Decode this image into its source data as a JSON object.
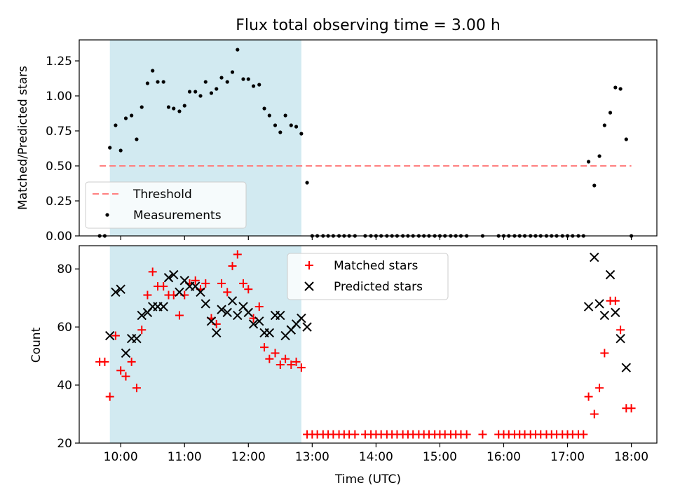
{
  "figure": {
    "title": "Flux total observing time = 3.00 h"
  },
  "chart_data": [
    {
      "type": "scatter",
      "title": "Flux total observing time = 3.00 h",
      "xlabel": "",
      "ylabel": "Matched/Predicted stars",
      "xlim_hours": [
        9.35,
        18.4
      ],
      "ylim": [
        0,
        1.4
      ],
      "yticks": [
        "0.00",
        "0.25",
        "0.50",
        "0.75",
        "1.00",
        "1.25"
      ],
      "xticks": [
        "10:00",
        "11:00",
        "12:00",
        "13:00",
        "14:00",
        "15:00",
        "16:00",
        "17:00",
        "18:00"
      ],
      "shaded_span_hours": [
        9.83,
        12.83
      ],
      "shade_color": "#add8e6",
      "legend": {
        "position": "lower-left",
        "entries": [
          "Threshold",
          "Measurements"
        ]
      },
      "threshold": {
        "name": "Threshold",
        "value": 0.5,
        "x_range_hours": [
          9.67,
          18.0
        ],
        "color": "#ff7f7f"
      },
      "series": [
        {
          "name": "Measurements",
          "color": "#000000",
          "x_hours": [
            9.67,
            9.75,
            9.83,
            9.92,
            10.0,
            10.08,
            10.17,
            10.25,
            10.33,
            10.42,
            10.5,
            10.58,
            10.67,
            10.75,
            10.83,
            10.92,
            11.0,
            11.08,
            11.17,
            11.25,
            11.33,
            11.42,
            11.5,
            11.58,
            11.67,
            11.75,
            11.83,
            11.92,
            12.0,
            12.08,
            12.17,
            12.25,
            12.33,
            12.42,
            12.5,
            12.58,
            12.67,
            12.75,
            12.83,
            12.92,
            13.0,
            13.08,
            13.17,
            13.25,
            13.33,
            13.42,
            13.5,
            13.58,
            13.67,
            13.83,
            13.92,
            14.0,
            14.08,
            14.17,
            14.25,
            14.33,
            14.42,
            14.5,
            14.58,
            14.67,
            14.75,
            14.83,
            14.92,
            15.0,
            15.08,
            15.17,
            15.25,
            15.33,
            15.42,
            15.67,
            15.92,
            16.0,
            16.08,
            16.17,
            16.25,
            16.33,
            16.42,
            16.5,
            16.58,
            16.67,
            16.75,
            16.83,
            16.92,
            17.0,
            17.08,
            17.17,
            17.25,
            17.33,
            17.42,
            17.5,
            17.58,
            17.67,
            17.75,
            17.83,
            17.92,
            18.0
          ],
          "y": [
            0.0,
            0.0,
            0.63,
            0.79,
            0.61,
            0.84,
            0.86,
            0.69,
            0.92,
            1.09,
            1.18,
            1.1,
            1.1,
            0.92,
            0.91,
            0.89,
            0.93,
            1.03,
            1.03,
            1.0,
            1.1,
            1.02,
            1.05,
            1.13,
            1.1,
            1.17,
            1.33,
            1.12,
            1.12,
            1.07,
            1.08,
            0.91,
            0.86,
            0.79,
            0.74,
            0.86,
            0.79,
            0.78,
            0.73,
            0.38,
            0.0,
            0.0,
            0.0,
            0.0,
            0.0,
            0.0,
            0.0,
            0.0,
            0.0,
            0.0,
            0.0,
            0.0,
            0.0,
            0.0,
            0.0,
            0.0,
            0.0,
            0.0,
            0.0,
            0.0,
            0.0,
            0.0,
            0.0,
            0.0,
            0.0,
            0.0,
            0.0,
            0.0,
            0.0,
            0.0,
            0.0,
            0.0,
            0.0,
            0.0,
            0.0,
            0.0,
            0.0,
            0.0,
            0.0,
            0.0,
            0.0,
            0.0,
            0.0,
            0.0,
            0.0,
            0.0,
            0.0,
            0.53,
            0.36,
            0.57,
            0.79,
            0.88,
            1.06,
            1.05,
            0.69,
            0.0
          ]
        }
      ]
    },
    {
      "type": "scatter",
      "title": "",
      "xlabel": "Time (UTC)",
      "ylabel": "Count",
      "xlim_hours": [
        9.35,
        18.4
      ],
      "ylim": [
        20,
        88
      ],
      "yticks": [
        "20",
        "40",
        "60",
        "80"
      ],
      "xticks": [
        "10:00",
        "11:00",
        "12:00",
        "13:00",
        "14:00",
        "15:00",
        "16:00",
        "17:00",
        "18:00"
      ],
      "shaded_span_hours": [
        9.83,
        12.83
      ],
      "shade_color": "#add8e6",
      "legend": {
        "position": "upper-center",
        "entries": [
          "Matched stars",
          "Predicted stars"
        ]
      },
      "series": [
        {
          "name": "Matched stars",
          "marker": "plus",
          "color": "#ff0000",
          "x_hours": [
            9.67,
            9.75,
            9.83,
            9.92,
            10.0,
            10.08,
            10.17,
            10.25,
            10.33,
            10.42,
            10.5,
            10.58,
            10.67,
            10.75,
            10.83,
            10.92,
            11.0,
            11.08,
            11.17,
            11.25,
            11.33,
            11.42,
            11.5,
            11.58,
            11.67,
            11.75,
            11.83,
            11.92,
            12.0,
            12.08,
            12.17,
            12.25,
            12.33,
            12.42,
            12.5,
            12.58,
            12.67,
            12.75,
            12.83,
            12.92,
            13.0,
            13.08,
            13.17,
            13.25,
            13.33,
            13.42,
            13.5,
            13.58,
            13.67,
            13.83,
            13.92,
            14.0,
            14.08,
            14.17,
            14.25,
            14.33,
            14.42,
            14.5,
            14.58,
            14.67,
            14.75,
            14.83,
            14.92,
            15.0,
            15.08,
            15.17,
            15.25,
            15.33,
            15.42,
            15.67,
            15.92,
            16.0,
            16.08,
            16.17,
            16.25,
            16.33,
            16.42,
            16.5,
            16.58,
            16.67,
            16.75,
            16.83,
            16.92,
            17.0,
            17.08,
            17.17,
            17.25,
            17.33,
            17.42,
            17.5,
            17.58,
            17.67,
            17.75,
            17.83,
            17.92,
            18.0
          ],
          "y": [
            48,
            48,
            36,
            57,
            45,
            43,
            48,
            39,
            59,
            71,
            79,
            74,
            74,
            71,
            71,
            64,
            71,
            75,
            76,
            73,
            75,
            63,
            61,
            75,
            72,
            81,
            85,
            75,
            73,
            63,
            67,
            53,
            49,
            51,
            47,
            49,
            47,
            48,
            46,
            23,
            23,
            23,
            23,
            23,
            23,
            23,
            23,
            23,
            23,
            23,
            23,
            23,
            23,
            23,
            23,
            23,
            23,
            23,
            23,
            23,
            23,
            23,
            23,
            23,
            23,
            23,
            23,
            23,
            23,
            23,
            23,
            23,
            23,
            23,
            23,
            23,
            23,
            23,
            23,
            23,
            23,
            23,
            23,
            23,
            23,
            23,
            23,
            36,
            30,
            39,
            51,
            69,
            69,
            59,
            32,
            32
          ]
        },
        {
          "name": "Predicted stars",
          "marker": "x",
          "color": "#000000",
          "x_hours": [
            9.83,
            9.92,
            10.0,
            10.08,
            10.17,
            10.25,
            10.33,
            10.42,
            10.5,
            10.58,
            10.67,
            10.75,
            10.83,
            10.92,
            11.0,
            11.08,
            11.17,
            11.25,
            11.33,
            11.42,
            11.5,
            11.58,
            11.67,
            11.75,
            11.83,
            11.92,
            12.0,
            12.08,
            12.17,
            12.25,
            12.33,
            12.42,
            12.5,
            12.58,
            12.67,
            12.75,
            12.83,
            12.92,
            17.33,
            17.42,
            17.5,
            17.58,
            17.67,
            17.75,
            17.83,
            17.92
          ],
          "y": [
            57,
            72,
            73,
            51,
            56,
            56,
            64,
            65,
            67,
            67,
            67,
            77,
            78,
            72,
            76,
            74,
            74,
            72,
            68,
            62,
            58,
            66,
            65,
            69,
            64,
            67,
            65,
            61,
            62,
            58,
            58,
            64,
            64,
            57,
            59,
            61,
            63,
            60,
            67,
            84,
            68,
            64,
            78,
            65,
            56,
            46
          ]
        }
      ]
    }
  ]
}
